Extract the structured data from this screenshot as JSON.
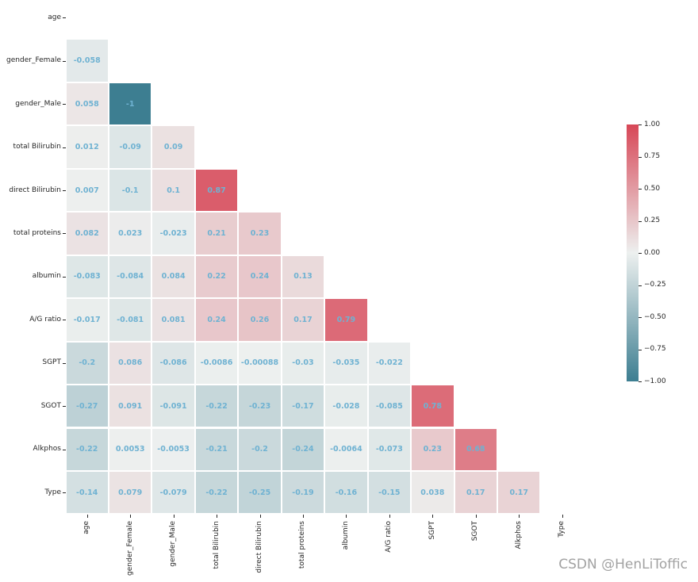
{
  "figure": {
    "watermark": "CSDN @HenLiToffic"
  },
  "chart_data": {
    "type": "heatmap",
    "subtype": "correlation-matrix-lower-triangle",
    "title": "",
    "xlabel": "",
    "ylabel": "",
    "grid": false,
    "mask": "upper triangle and diagonal hidden",
    "labels": [
      "age",
      "gender_Female",
      "gender_Male",
      "total Bilirubin",
      "direct Bilirubin",
      "total proteins",
      "albumin",
      "A/G ratio",
      "SGPT",
      "SGOT",
      "Alkphos",
      "Type"
    ],
    "matrix": [
      [],
      [
        -0.058
      ],
      [
        0.058,
        -1
      ],
      [
        0.012,
        -0.09,
        0.09
      ],
      [
        0.007,
        -0.1,
        0.1,
        0.87
      ],
      [
        0.082,
        0.023,
        -0.023,
        0.21,
        0.23
      ],
      [
        -0.083,
        -0.084,
        0.084,
        0.22,
        0.24,
        0.13
      ],
      [
        -0.017,
        -0.081,
        0.081,
        0.24,
        0.26,
        0.17,
        0.79
      ],
      [
        -0.2,
        0.086,
        -0.086,
        -0.0086,
        -0.00088,
        -0.03,
        -0.035,
        -0.022
      ],
      [
        -0.27,
        0.091,
        -0.091,
        -0.22,
        -0.23,
        -0.17,
        -0.028,
        -0.085,
        0.78
      ],
      [
        -0.22,
        0.0053,
        -0.0053,
        -0.21,
        -0.2,
        -0.24,
        -0.0064,
        -0.073,
        0.23,
        0.68
      ],
      [
        -0.14,
        0.079,
        -0.079,
        -0.22,
        -0.25,
        -0.19,
        -0.16,
        -0.15,
        0.038,
        0.17,
        0.17
      ]
    ],
    "colormap": {
      "vmin": -1,
      "vmax": 1,
      "min_color": "#3d7e91",
      "mid_color": "#edf0ef",
      "max_color": "#d74757"
    },
    "annotation_color": "#6fb2d2",
    "tick_color": "#262626",
    "colorbar": {
      "position": "right",
      "ticks": [
        "1.00",
        "0.75",
        "0.50",
        "0.25",
        "0.00",
        "−0.25",
        "−0.50",
        "−0.75",
        "−1.00"
      ]
    }
  }
}
